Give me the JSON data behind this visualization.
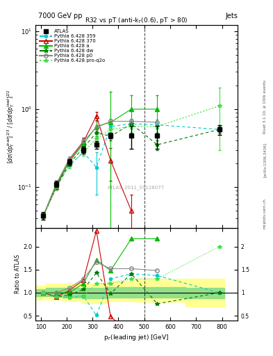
{
  "title_top": "7000 GeV pp",
  "title_right": "Jets",
  "plot_title": "R32 vs pT (anti-k_{T}(0.6), pT > 80)",
  "ylabel_main": "[dσ/dp$_T^{lead}$]$^{2/3}$ / [dσ/dp$_T^{lead}$]$^{2/2}$",
  "ylabel_ratio": "Ratio to ATLAS",
  "xlabel": "p$_T$(leading jet) [GeV]",
  "watermark": "ATLAS_2011_S9128077",
  "rivet_label": "Rivet 3.1.10, ≥ 100k events",
  "arxiv_label": "[arXiv:1306.3436]",
  "mcplots_label": "mcplots.cern.ch",
  "dashed_line_x": 500,
  "atlas_x": [
    110,
    160,
    210,
    265,
    315,
    370,
    450,
    550,
    790
  ],
  "atlas_y": [
    0.043,
    0.11,
    0.21,
    0.3,
    0.35,
    0.46,
    0.46,
    0.46,
    0.55
  ],
  "atlas_yerr_lo": [
    0.005,
    0.01,
    0.02,
    0.03,
    0.04,
    0.04,
    0.15,
    0.15,
    0.08
  ],
  "atlas_yerr_hi": [
    0.005,
    0.01,
    0.02,
    0.03,
    0.04,
    0.04,
    0.15,
    0.15,
    0.08
  ],
  "p359_x": [
    110,
    160,
    210,
    265,
    315,
    370,
    450,
    550,
    790
  ],
  "p359_y": [
    0.043,
    0.1,
    0.19,
    0.28,
    0.18,
    0.6,
    0.65,
    0.63,
    0.55
  ],
  "p359_yerr_lo": [
    0.003,
    0.008,
    0.015,
    0.025,
    0.1,
    0.05,
    0.05,
    0.05,
    0.05
  ],
  "p359_yerr_hi": [
    0.003,
    0.008,
    0.015,
    0.025,
    0.1,
    0.05,
    0.05,
    0.05,
    0.05
  ],
  "p370_x": [
    110,
    160,
    210,
    265,
    315,
    370,
    450
  ],
  "p370_y": [
    0.043,
    0.1,
    0.22,
    0.38,
    0.82,
    0.22,
    0.05
  ],
  "p370_yerr_lo": [
    0.003,
    0.008,
    0.02,
    0.05,
    0.1,
    0.1,
    0.03
  ],
  "p370_yerr_hi": [
    0.003,
    0.008,
    0.02,
    0.05,
    0.1,
    0.1,
    0.03
  ],
  "pa_x": [
    110,
    160,
    210,
    265,
    315,
    370,
    450,
    550
  ],
  "pa_y": [
    0.043,
    0.11,
    0.21,
    0.36,
    0.6,
    0.68,
    1.0,
    1.0
  ],
  "pa_yerr_lo": [
    0.003,
    0.008,
    0.02,
    0.05,
    0.1,
    1.0,
    0.5,
    0.5
  ],
  "pa_yerr_hi": [
    0.003,
    0.008,
    0.02,
    0.05,
    0.1,
    1.0,
    0.5,
    0.5
  ],
  "pdw_x": [
    110,
    160,
    210,
    265,
    315,
    370,
    450,
    550,
    790
  ],
  "pdw_y": [
    0.043,
    0.1,
    0.2,
    0.32,
    0.5,
    0.45,
    0.65,
    0.35,
    0.55
  ],
  "pdw_yerr_lo": [
    0.003,
    0.008,
    0.015,
    0.025,
    0.05,
    0.05,
    0.05,
    0.05,
    0.05
  ],
  "pdw_yerr_hi": [
    0.003,
    0.008,
    0.015,
    0.025,
    0.05,
    0.05,
    0.05,
    0.05,
    0.05
  ],
  "pp0_x": [
    110,
    160,
    210,
    265,
    315,
    370,
    450,
    550
  ],
  "pp0_y": [
    0.043,
    0.11,
    0.23,
    0.39,
    0.58,
    0.7,
    0.7,
    0.68
  ],
  "pp0_yerr_lo": [
    0.003,
    0.008,
    0.02,
    0.03,
    0.05,
    0.05,
    0.05,
    0.05
  ],
  "pp0_yerr_hi": [
    0.003,
    0.008,
    0.02,
    0.03,
    0.05,
    0.05,
    0.05,
    0.05
  ],
  "pproq2o_x": [
    110,
    160,
    210,
    265,
    315,
    370,
    450,
    550,
    790
  ],
  "pproq2o_y": [
    0.043,
    0.1,
    0.19,
    0.28,
    0.42,
    0.55,
    0.6,
    0.6,
    1.1
  ],
  "pproq2o_yerr_lo": [
    0.003,
    0.008,
    0.015,
    0.025,
    0.04,
    0.04,
    0.04,
    0.04,
    0.8
  ],
  "pproq2o_yerr_hi": [
    0.003,
    0.008,
    0.015,
    0.025,
    0.04,
    0.04,
    0.04,
    0.04,
    0.8
  ],
  "ratio_359_x": [
    110,
    160,
    210,
    265,
    315,
    370,
    450,
    550,
    790
  ],
  "ratio_359_y": [
    1.0,
    0.91,
    0.9,
    0.93,
    0.51,
    1.3,
    1.41,
    1.37,
    1.0
  ],
  "ratio_370_x": [
    110,
    160,
    210,
    265,
    315,
    370,
    450
  ],
  "ratio_370_y": [
    1.0,
    0.91,
    1.05,
    1.27,
    2.34,
    0.48,
    0.11
  ],
  "ratio_a_x": [
    110,
    160,
    210,
    265,
    315,
    370,
    450,
    550
  ],
  "ratio_a_y": [
    1.0,
    1.0,
    1.0,
    1.2,
    1.71,
    1.48,
    2.17,
    2.17
  ],
  "ratio_dw_x": [
    110,
    160,
    210,
    265,
    315,
    370,
    450,
    550,
    790
  ],
  "ratio_dw_y": [
    1.0,
    0.91,
    0.95,
    1.07,
    1.43,
    0.98,
    1.41,
    0.76,
    1.0
  ],
  "ratio_p0_x": [
    110,
    160,
    210,
    265,
    315,
    370,
    450,
    550
  ],
  "ratio_p0_y": [
    1.0,
    1.0,
    1.1,
    1.3,
    1.66,
    1.52,
    1.52,
    1.48
  ],
  "ratio_proq2o_x": [
    110,
    160,
    210,
    265,
    315,
    370,
    450,
    550,
    790
  ],
  "ratio_proq2o_y": [
    1.0,
    0.91,
    0.9,
    0.93,
    1.2,
    1.2,
    1.3,
    1.3,
    2.0
  ],
  "band_yellow_x": [
    80,
    160,
    210,
    310,
    410,
    510,
    810
  ],
  "band_yellow_lo": [
    0.85,
    0.85,
    0.82,
    0.78,
    0.82,
    0.8,
    0.7
  ],
  "band_yellow_hi": [
    1.15,
    1.2,
    1.2,
    1.2,
    1.25,
    1.3,
    1.3
  ],
  "band_green_x": [
    80,
    160,
    210,
    310,
    410,
    510,
    810
  ],
  "band_green_lo": [
    0.92,
    0.92,
    0.9,
    0.88,
    0.9,
    0.9,
    0.88
  ],
  "band_green_hi": [
    1.08,
    1.1,
    1.1,
    1.1,
    1.12,
    1.12,
    1.1
  ],
  "color_atlas": "#000000",
  "color_359": "#00CCCC",
  "color_370": "#CC0000",
  "color_a": "#00BB00",
  "color_dw": "#007700",
  "color_p0": "#888888",
  "color_proq2o": "#44DD44",
  "ylim_main": [
    0.03,
    12
  ],
  "ylim_ratio": [
    0.4,
    2.4
  ],
  "xlim": [
    80,
    860
  ]
}
